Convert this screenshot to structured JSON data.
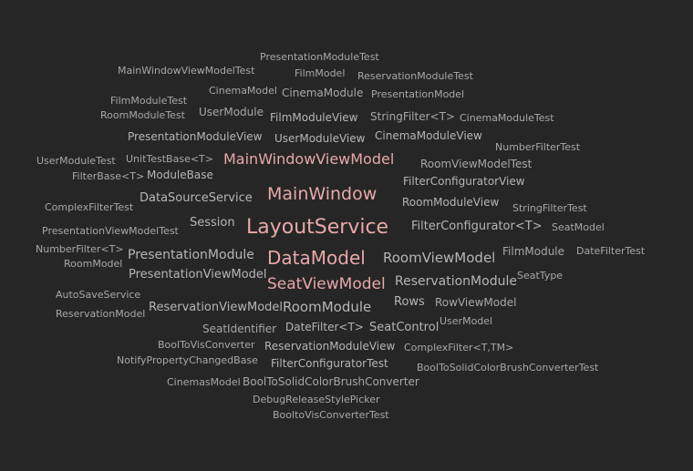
{
  "colors": {
    "background": "#262626",
    "word": "#a8a8a8",
    "word_mid": "#b6b6b6",
    "word_light": "#cfcfcf",
    "highlight": "#e8a8a8"
  },
  "words": [
    {
      "text": "PresentationModuleTest"
    },
    {
      "text": "MainWindowViewModelTest"
    },
    {
      "text": "FilmModel"
    },
    {
      "text": "ReservationModuleTest"
    },
    {
      "text": "CinemaModel"
    },
    {
      "text": "CinemaModule"
    },
    {
      "text": "PresentationModel"
    },
    {
      "text": "FilmModuleTest"
    },
    {
      "text": "UserModule"
    },
    {
      "text": "RoomModuleTest"
    },
    {
      "text": "FilmModuleView"
    },
    {
      "text": "StringFilter<T>"
    },
    {
      "text": "CinemaModuleTest"
    },
    {
      "text": "PresentationModuleView"
    },
    {
      "text": "UserModuleView"
    },
    {
      "text": "CinemaModuleView"
    },
    {
      "text": "NumberFilterTest"
    },
    {
      "text": "UserModuleTest"
    },
    {
      "text": "UnitTestBase<T>"
    },
    {
      "text": "MainWindowViewModel"
    },
    {
      "text": "RoomViewModelTest"
    },
    {
      "text": "FilterBase<T>"
    },
    {
      "text": "ModuleBase"
    },
    {
      "text": "FilterConfiguratorView"
    },
    {
      "text": "DataSourceService"
    },
    {
      "text": "MainWindow"
    },
    {
      "text": "ComplexFilterTest"
    },
    {
      "text": "RoomModuleView"
    },
    {
      "text": "StringFilterTest"
    },
    {
      "text": "Session"
    },
    {
      "text": "LayoutService"
    },
    {
      "text": "FilterConfigurator<T>"
    },
    {
      "text": "SeatModel"
    },
    {
      "text": "PresentationViewModelTest"
    },
    {
      "text": "NumberFilter<T>"
    },
    {
      "text": "PresentationModule"
    },
    {
      "text": "DataModel"
    },
    {
      "text": "RoomViewModel"
    },
    {
      "text": "FilmModule"
    },
    {
      "text": "DateFilterTest"
    },
    {
      "text": "RoomModel"
    },
    {
      "text": "PresentationViewModel"
    },
    {
      "text": "ReservationModule"
    },
    {
      "text": "SeatViewModel"
    },
    {
      "text": "SeatType"
    },
    {
      "text": "AutoSaveService"
    },
    {
      "text": "Rows"
    },
    {
      "text": "RowViewModel"
    },
    {
      "text": "ReservationViewModel"
    },
    {
      "text": "RoomModule"
    },
    {
      "text": "ReservationModel"
    },
    {
      "text": "UserModel"
    },
    {
      "text": "SeatIdentifier"
    },
    {
      "text": "DateFilter<T>"
    },
    {
      "text": "SeatControl"
    },
    {
      "text": "BoolToVisConverter"
    },
    {
      "text": "ReservationModuleView"
    },
    {
      "text": "ComplexFilter<T,TM>"
    },
    {
      "text": "NotifyPropertyChangedBase"
    },
    {
      "text": "FilterConfiguratorTest"
    },
    {
      "text": "BoolToSolidColorBrushConverterTest"
    },
    {
      "text": "CinemasModel"
    },
    {
      "text": "BoolToSolidColorBrushConverter"
    },
    {
      "text": "DebugReleaseStylePicker"
    },
    {
      "text": "BooltoVisConverterTest"
    }
  ]
}
